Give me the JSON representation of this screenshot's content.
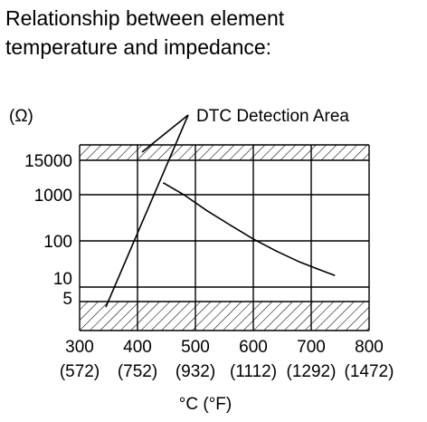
{
  "title_lines": [
    "Relationship between element",
    "temperature and impedance:"
  ],
  "chart_data": {
    "type": "line",
    "title": "Relationship between element temperature and impedance:",
    "ylabel": "(Ω)",
    "xlabel": "°C (°F)",
    "xlim": [
      300,
      800
    ],
    "x_ticks": [
      {
        "c": "300",
        "f": "(572)"
      },
      {
        "c": "400",
        "f": "(752)"
      },
      {
        "c": "500",
        "f": "(932)"
      },
      {
        "c": "600",
        "f": "(1112)"
      },
      {
        "c": "700",
        "f": "(1292)"
      },
      {
        "c": "800",
        "f": "(1472)"
      }
    ],
    "y_ticks": [
      "15000",
      "1000",
      "100",
      "10",
      "5"
    ],
    "grid": true,
    "detection_areas": {
      "label": "DTC Detection Area",
      "bands": [
        {
          "from": "15000",
          "to": "above 15000"
        },
        {
          "from": "below 5",
          "to": "5"
        }
      ]
    },
    "series": [
      {
        "points": [
          {
            "x": 445,
            "y": 2500
          },
          {
            "x": 480,
            "y": 1000
          },
          {
            "x": 520,
            "y": 450
          },
          {
            "x": 560,
            "y": 220
          },
          {
            "x": 600,
            "y": 110
          },
          {
            "x": 640,
            "y": 60
          },
          {
            "x": 680,
            "y": 35
          },
          {
            "x": 710,
            "y": 25
          },
          {
            "x": 740,
            "y": 18
          }
        ]
      }
    ]
  }
}
